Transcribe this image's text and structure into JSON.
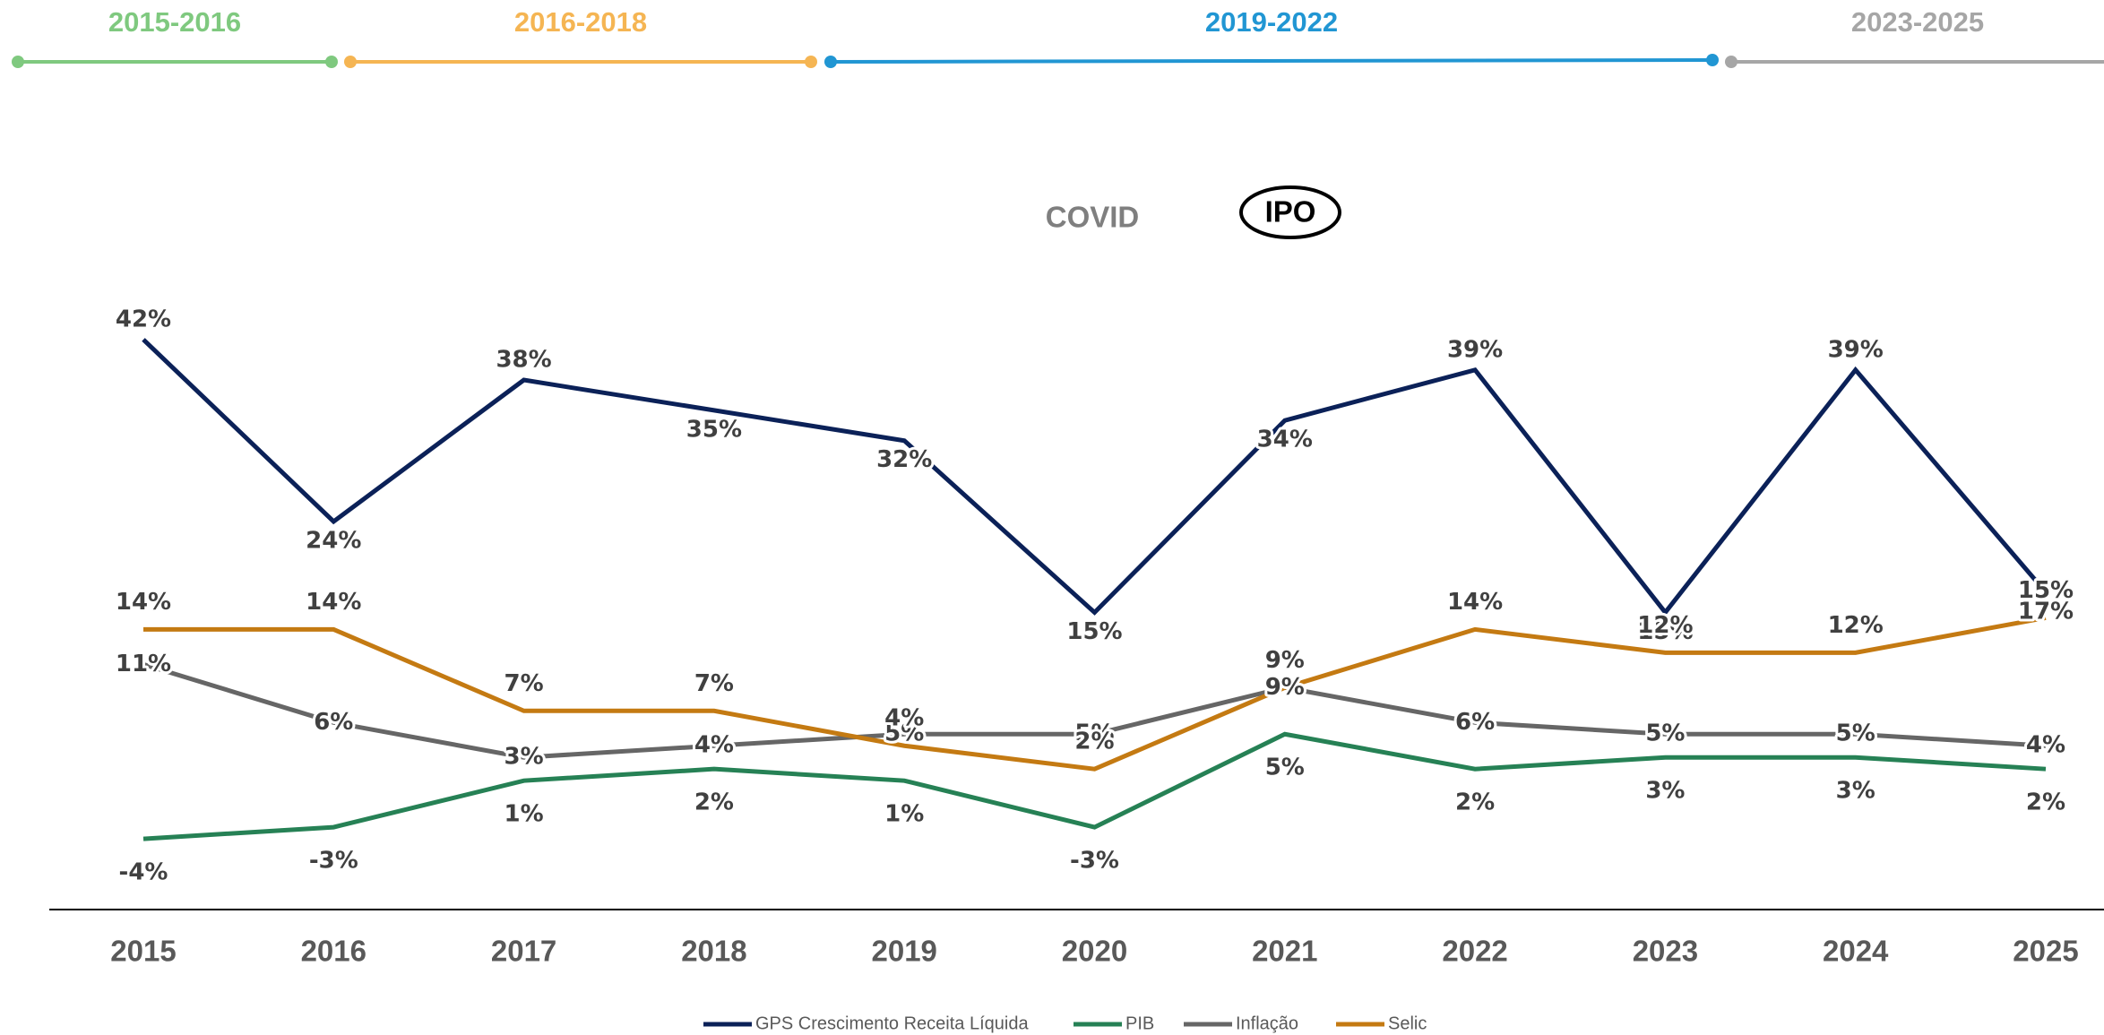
{
  "timeline": [
    {
      "label": "2015-2016",
      "color": "#7fc97f"
    },
    {
      "label": "2016-2018",
      "color": "#f5b553"
    },
    {
      "label": "2019-2022",
      "color": "#2196d3"
    },
    {
      "label": "2023-2025",
      "color": "#a6a6a6"
    }
  ],
  "chart_data": {
    "type": "line",
    "annotations": [
      "COVID",
      "IPO"
    ],
    "categories": [
      "2015",
      "2016",
      "2017",
      "2018",
      "2019",
      "2020",
      "2021",
      "2022",
      "2023",
      "2024",
      "2025"
    ],
    "ylim": [
      -12,
      49
    ],
    "y2lim": [
      -8,
      45
    ],
    "series": [
      {
        "name": "GPS Crescimento Receita Líquida",
        "color": "#0b2158",
        "values": [
          42,
          24,
          38,
          35,
          32,
          15,
          34,
          39,
          15,
          39,
          17
        ],
        "value_labels": [
          "42%",
          "24%",
          "38%",
          "35%",
          "32%",
          "15%",
          "34%",
          "39%",
          "15%",
          "39%",
          "17%"
        ]
      },
      {
        "name": "PIB",
        "color": "#268155",
        "axis": "y2",
        "values": [
          -4,
          -3,
          1,
          2,
          1,
          -3,
          5,
          2,
          3,
          3,
          2
        ],
        "value_labels": [
          "-4%",
          "-3%",
          "1%",
          "2%",
          "1%",
          "-3%",
          "5%",
          "2%",
          "3%",
          "3%",
          "2%"
        ]
      },
      {
        "name": "Inflação",
        "color": "#666666",
        "axis": "y2",
        "values": [
          11,
          6,
          3,
          4,
          5,
          5,
          9,
          6,
          5,
          5,
          4
        ],
        "value_labels": [
          "11%",
          "6%",
          "3%",
          "4%",
          "5%",
          "5%",
          "9%",
          "6%",
          "5%",
          "5%",
          "4%"
        ]
      },
      {
        "name": "Selic",
        "color": "#c47a12",
        "axis": "y2",
        "values": [
          14,
          14,
          7,
          7,
          4,
          2,
          9,
          14,
          12,
          12,
          15
        ],
        "value_labels": [
          "14%",
          "14%",
          "7%",
          "7%",
          "4%",
          "2%",
          "9%",
          "14%",
          "12%",
          "12%",
          "15%"
        ]
      }
    ]
  }
}
